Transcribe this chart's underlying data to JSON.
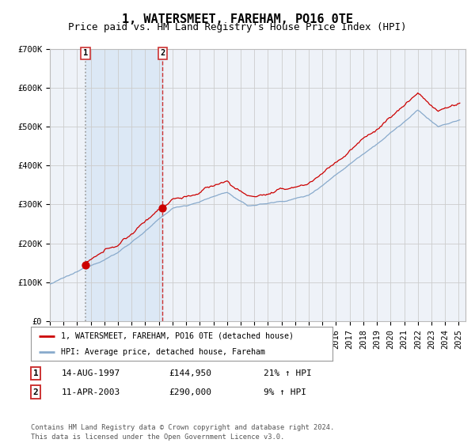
{
  "title": "1, WATERSMEET, FAREHAM, PO16 0TE",
  "subtitle": "Price paid vs. HM Land Registry's House Price Index (HPI)",
  "ylim": [
    0,
    700000
  ],
  "yticks": [
    0,
    100000,
    200000,
    300000,
    400000,
    500000,
    600000,
    700000
  ],
  "ytick_labels": [
    "£0",
    "£100K",
    "£200K",
    "£300K",
    "£400K",
    "£500K",
    "£600K",
    "£700K"
  ],
  "purchase1_date": 1997.62,
  "purchase1_price": 144950,
  "purchase1_label": "1",
  "purchase2_date": 2003.27,
  "purchase2_price": 290000,
  "purchase2_label": "2",
  "line_color_red": "#cc0000",
  "line_color_blue": "#88aacc",
  "bg_color": "#ffffff",
  "plot_bg": "#eef2f8",
  "shaded_bg": "#dce8f5",
  "grid_color": "#cccccc",
  "dashed1_color": "#aaaaaa",
  "dashed2_color": "#cc3333",
  "legend_label_red": "1, WATERSMEET, FAREHAM, PO16 0TE (detached house)",
  "legend_label_blue": "HPI: Average price, detached house, Fareham",
  "table_row1": [
    "1",
    "14-AUG-1997",
    "£144,950",
    "21% ↑ HPI"
  ],
  "table_row2": [
    "2",
    "11-APR-2003",
    "£290,000",
    "9% ↑ HPI"
  ],
  "footer": "Contains HM Land Registry data © Crown copyright and database right 2024.\nThis data is licensed under the Open Government Licence v3.0.",
  "title_fontsize": 11,
  "subtitle_fontsize": 9,
  "tick_fontsize": 7.5
}
